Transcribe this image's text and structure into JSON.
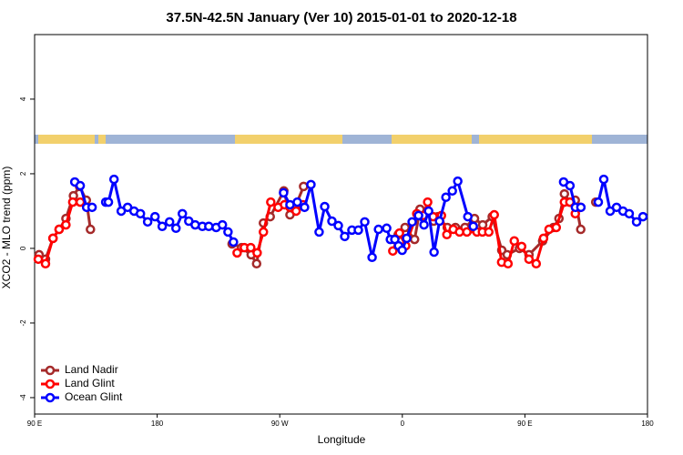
{
  "chart_data": {
    "type": "line",
    "title": "37.5N-42.5N January (Ver 10)   2015-01-01 to 2020-12-18",
    "x_label": "Longitude",
    "y_label": "XCO2 - MLO trend (ppm)",
    "xlim": [
      90,
      540
    ],
    "ylim": [
      -4.44,
      5.73
    ],
    "xticks": [
      {
        "value": 90,
        "label": "90 E"
      },
      180,
      {
        "value": 270,
        "label": "90 W"
      },
      {
        "value": 360,
        "label": "0"
      },
      {
        "value": 450,
        "label": "90 E"
      },
      {
        "value": 540,
        "label": "180"
      }
    ],
    "yticks": [
      -4,
      -2,
      0,
      2,
      4
    ],
    "legend": "bottom-left",
    "series": [
      {
        "name": "Land Nadir",
        "color": "#a52a2a",
        "x": [
          93.3,
          98,
          103.5,
          108,
          113,
          118.5,
          123,
          128,
          131,
          null,
          235,
          242,
          249,
          253,
          258,
          263,
          273,
          277.5,
          282,
          287.5,
          null,
          354,
          357,
          362,
          369,
          373,
          379,
          383,
          386,
          393,
          399,
          406,
          413,
          419,
          426,
          433,
          437,
          446,
          453,
          463,
          471,
          475,
          479,
          483,
          487,
          491,
          null,
          502
        ],
        "values": [
          -0.17,
          -0.29,
          0.27,
          0.51,
          0.8,
          1.41,
          1.66,
          1.29,
          0.51,
          null,
          0.12,
          0.02,
          -0.17,
          -0.41,
          0.68,
          0.85,
          1.54,
          0.9,
          1.17,
          1.66,
          null,
          0.24,
          0.37,
          0.56,
          0.24,
          1.05,
          0.95,
          0.73,
          0.85,
          0.56,
          0.56,
          0.56,
          0.8,
          0.63,
          0.85,
          -0.05,
          -0.17,
          0.0,
          -0.17,
          0.2,
          0.56,
          0.8,
          1.46,
          1.24,
          1.29,
          0.51,
          null,
          1.24
        ]
      },
      {
        "name": "Land Glint",
        "color": "#ff0000",
        "x": [
          92.7,
          98,
          103.5,
          108,
          113,
          118,
          123.5,
          null,
          238.7,
          244,
          248.7,
          253.4,
          258,
          263.4,
          268.8,
          273.5,
          277.5,
          282,
          287,
          null,
          353,
          357.9,
          362.5,
          370.6,
          375.3,
          378.6,
          382.6,
          388.7,
          392.7,
          397.4,
          402,
          407.4,
          414.8,
          418.8,
          423.5,
          427.5,
          432.9,
          437.6,
          442.2,
          447.6,
          453,
          458.3,
          463.7,
          467.7,
          473,
          479,
          483,
          487,
          491
        ],
        "values": [
          -0.29,
          -0.41,
          0.27,
          0.51,
          0.63,
          1.24,
          1.24,
          null,
          -0.12,
          0.02,
          0.02,
          -0.12,
          0.44,
          1.24,
          1.1,
          1.17,
          1.1,
          1.0,
          1.17,
          null,
          -0.07,
          0.41,
          0.07,
          0.93,
          0.88,
          1.24,
          0.85,
          0.88,
          0.37,
          0.51,
          0.44,
          0.44,
          0.44,
          0.44,
          0.44,
          0.9,
          -0.37,
          -0.41,
          0.2,
          0.05,
          -0.29,
          -0.41,
          0.27,
          0.51,
          0.56,
          1.24,
          1.24,
          0.93,
          1.1
        ]
      },
      {
        "name": "Ocean Glint",
        "color": "#0000ff",
        "x": [
          119.5,
          123.5,
          128.2,
          132.2,
          null,
          142.2,
          144.2,
          148.3,
          153.6,
          158.3,
          163,
          167.7,
          173,
          178.4,
          183.7,
          189.1,
          193.8,
          198.5,
          203.2,
          207.9,
          213.2,
          217.9,
          223.3,
          227.9,
          232,
          236,
          null,
          272.8,
          277.5,
          282.9,
          288.2,
          292.9,
          298.9,
          303,
          308.3,
          313,
          317.7,
          323,
          327.7,
          332.4,
          337.8,
          342.5,
          348.5,
          351.2,
          354.5,
          357.2,
          359.9,
          363.2,
          367.2,
          371.9,
          375.9,
          379.3,
          383.3,
          387.3,
          392,
          396.7,
          400.7,
          408.1,
          412.1,
          null,
          478.4,
          483.1,
          487.1,
          491.1,
          null,
          503.9,
          507.9,
          512.6,
          517.3,
          522,
          526.6,
          532,
          536.7
        ],
        "values": [
          1.78,
          1.68,
          1.1,
          1.1,
          null,
          1.24,
          1.24,
          1.85,
          1.0,
          1.1,
          1.0,
          0.93,
          0.71,
          0.85,
          0.59,
          0.71,
          0.54,
          0.93,
          0.73,
          0.63,
          0.59,
          0.59,
          0.56,
          0.63,
          0.44,
          0.17,
          null,
          1.49,
          1.17,
          1.24,
          1.1,
          1.71,
          0.44,
          1.12,
          0.73,
          0.61,
          0.32,
          0.49,
          0.49,
          0.71,
          -0.24,
          0.51,
          0.54,
          0.24,
          0.24,
          0.07,
          -0.05,
          0.27,
          0.71,
          0.88,
          0.63,
          1.0,
          -0.1,
          0.73,
          1.37,
          1.54,
          1.8,
          0.85,
          0.59,
          null,
          1.78,
          1.68,
          1.1,
          1.1,
          null,
          1.24,
          1.85,
          1.0,
          1.1,
          1.0,
          0.93,
          0.71,
          0.85
        ]
      }
    ]
  }
}
